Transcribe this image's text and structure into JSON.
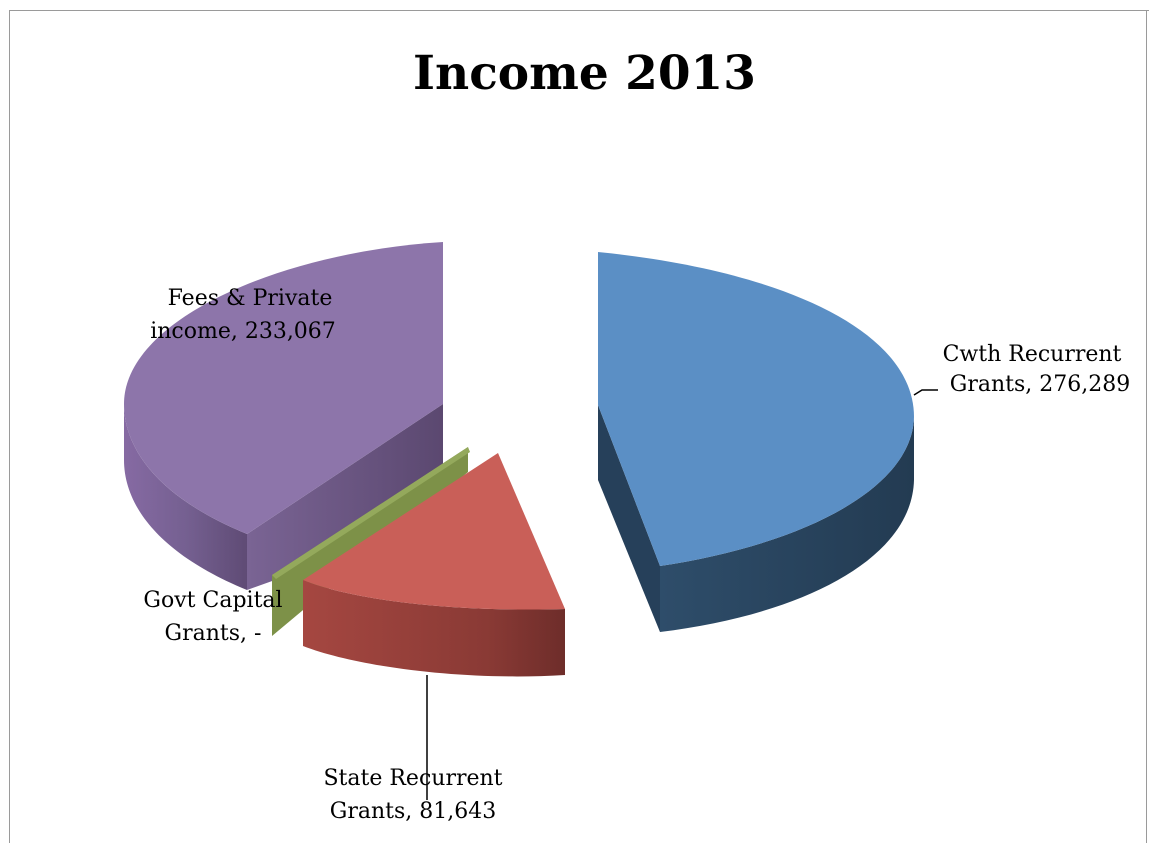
{
  "chart_data": {
    "type": "pie",
    "title": "Income 2013",
    "value_unit": "",
    "slices": [
      {
        "name": "Cwth Recurrent Grants",
        "value": 276289,
        "value_label": "276,289",
        "label_lines": [
          "Cwth Recurrent",
          "Grants,  276,289"
        ],
        "top_color": "#5b8fc5",
        "side_color": "#2a4661"
      },
      {
        "name": "State Recurrent Grants",
        "value": 81643,
        "value_label": "81,643",
        "label_lines": [
          "State Recurrent",
          "Grants,  81,643"
        ],
        "top_color": "#c95f58",
        "side_color": "#8e3b36"
      },
      {
        "name": "Govt Capital Grants",
        "value": 0,
        "value_label": "-",
        "label_lines": [
          "Govt Capital",
          "Grants,  -"
        ],
        "top_color": "#7d9148",
        "side_color": "#5c6e31"
      },
      {
        "name": "Fees & Private income",
        "value": 233067,
        "value_label": "233,067",
        "label_lines": [
          "Fees & Private",
          "income,  233,067"
        ],
        "top_color": "#8d75aa",
        "side_color": "#634e7a"
      }
    ],
    "legend": "none",
    "style": "3d-exploded"
  }
}
